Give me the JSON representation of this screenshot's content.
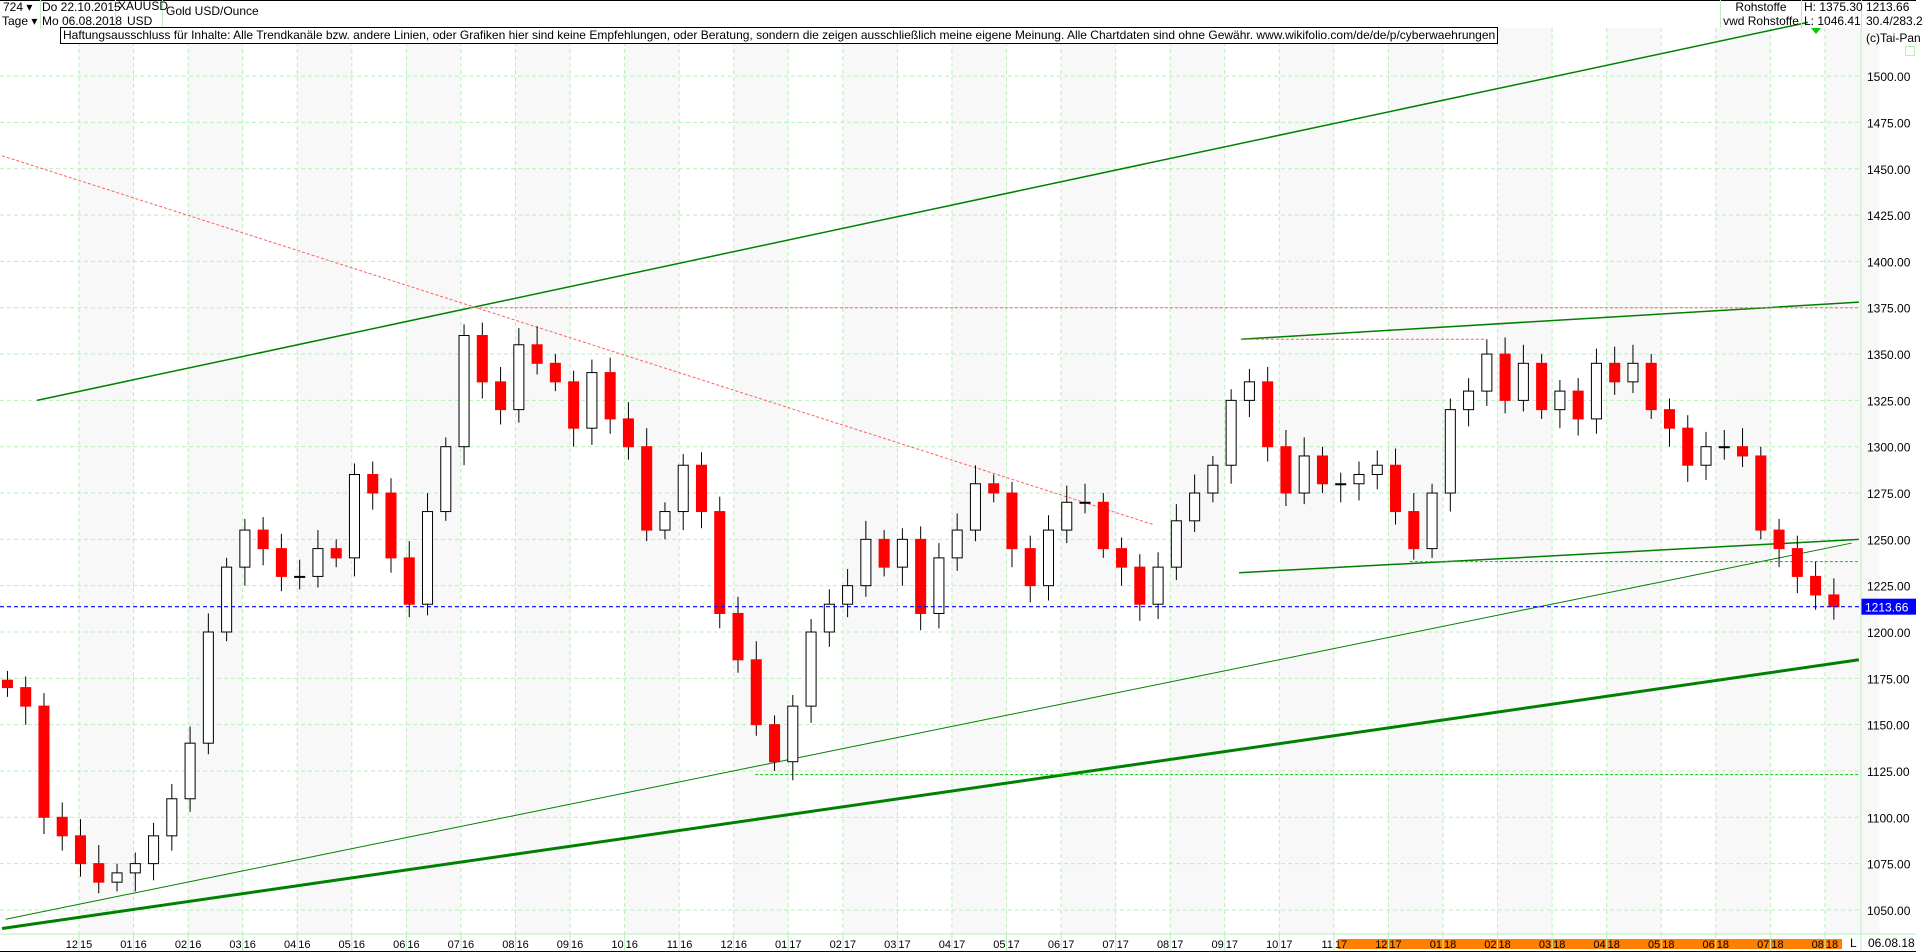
{
  "header": {
    "bars": "724 ▾",
    "interval": "Tage ▾",
    "from_date": "Do 22.10.2015",
    "to_date": "Mo 06.08.2018",
    "symbol": "XAUUSD",
    "currency": "USD",
    "name": "Gold USD/Ounce",
    "exchange": "Rohstoffe",
    "source": "vwd Rohstoffe",
    "high": "H: 1375.30",
    "low": "L: 1046.41",
    "last": "1213.66",
    "extra": "30.4/283.2",
    "copyright": "(c)Tai-Pan"
  },
  "disclaimer": "Haftungsausschluss für Inhalte: Alle Trendkanäle bzw. andere Linien, oder Grafiken hier sind keine Empfehlungen, oder Beratung, sondern die zeigen ausschließlich meine eigene Meinung. Alle Chartdaten sind ohne Gewähr.  www.wikifolio.com/de/de/p/cyberwaehrungen",
  "footer": {
    "mode": "L",
    "date": "06.08.18"
  },
  "colors": {
    "up": "#000000",
    "down": "#ff0000",
    "grid": "#b8f0b8",
    "trend": "#008000",
    "support": "#00cc00",
    "resistance": "#ff6060",
    "last_price": "#0000ff",
    "highlight": "#ff8000"
  },
  "chart_data": {
    "type": "candlestick",
    "title": "Gold USD/Ounce",
    "start_date": "2015-10-22",
    "end_date": "2018-08-06",
    "ylim": [
      1040,
      1530
    ],
    "grid": true,
    "y_ticks": [
      "1050.00",
      "1075.00",
      "1100.00",
      "1125.00",
      "1150.00",
      "1175.00",
      "1200.00",
      "1225.00",
      "1250.00",
      "1275.00",
      "1300.00",
      "1325.00",
      "1350.00",
      "1375.00",
      "1400.00",
      "1425.00",
      "1450.00",
      "1475.00",
      "1500.00"
    ],
    "x_ticks": [
      "12 15",
      "01 16",
      "02 16",
      "03 16",
      "04 16",
      "05 16",
      "06 16",
      "07 16",
      "08 16",
      "09 16",
      "10 16",
      "11 16",
      "12 16",
      "01 17",
      "02 17",
      "03 17",
      "04 17",
      "05 17",
      "06 17",
      "07 17",
      "08 17",
      "09 17",
      "10 17",
      "11 17",
      "12 17",
      "01 18",
      "02 18",
      "03 18",
      "04 18",
      "05 18",
      "06 18",
      "07 18",
      "08 18"
    ],
    "highlighted_from_tick": "11 17",
    "last_price": 1213.66,
    "closes": [
      1170,
      1160,
      1100,
      1090,
      1075,
      1065,
      1070,
      1075,
      1090,
      1110,
      1140,
      1200,
      1235,
      1255,
      1245,
      1230,
      1230,
      1245,
      1240,
      1285,
      1275,
      1240,
      1215,
      1265,
      1300,
      1360,
      1335,
      1320,
      1355,
      1345,
      1335,
      1310,
      1340,
      1315,
      1300,
      1255,
      1265,
      1290,
      1265,
      1210,
      1185,
      1150,
      1130,
      1160,
      1200,
      1215,
      1225,
      1250,
      1235,
      1250,
      1210,
      1240,
      1255,
      1280,
      1275,
      1245,
      1225,
      1255,
      1270,
      1270,
      1245,
      1235,
      1215,
      1235,
      1260,
      1275,
      1290,
      1325,
      1335,
      1300,
      1275,
      1295,
      1280,
      1280,
      1285,
      1290,
      1265,
      1245,
      1275,
      1320,
      1330,
      1350,
      1325,
      1345,
      1320,
      1330,
      1315,
      1345,
      1335,
      1345,
      1320,
      1310,
      1290,
      1300,
      1300,
      1295,
      1255,
      1245,
      1230,
      1220,
      1213.66
    ],
    "lines": [
      {
        "kind": "trend",
        "from": [
          "2015-11-08",
          1325
        ],
        "to": [
          "2018-07-22",
          1529
        ],
        "width": 1.5
      },
      {
        "kind": "trend",
        "from": [
          "2015-10-21",
          1045
        ],
        "to": [
          "2018-08-16",
          1248
        ],
        "width": 1
      },
      {
        "kind": "trend",
        "from": [
          "2015-10-19",
          1040
        ],
        "to": [
          "2018-08-20",
          1185
        ],
        "width": 3
      },
      {
        "kind": "trend",
        "from": [
          "2017-09-10",
          1358
        ],
        "to": [
          "2018-08-20",
          1378
        ],
        "width": 1.5
      },
      {
        "kind": "trend",
        "from": [
          "2017-09-09",
          1232
        ],
        "to": [
          "2018-08-20",
          1250
        ],
        "width": 1.5
      },
      {
        "kind": "resistance",
        "from": [
          "2015-10-19",
          1457
        ],
        "to": [
          "2017-07-22",
          1258
        ],
        "width": 1
      },
      {
        "kind": "resistance",
        "from": [
          "2016-07-06",
          1375
        ],
        "to": [
          "2018-08-20",
          1375
        ],
        "width": 1
      },
      {
        "kind": "resistance",
        "from": [
          "2017-09-10",
          1358
        ],
        "to": [
          "2018-01-25",
          1358
        ],
        "width": 1
      },
      {
        "kind": "support",
        "from": [
          "2016-12-13",
          1123
        ],
        "to": [
          "2018-08-20",
          1123
        ],
        "width": 1
      },
      {
        "kind": "support",
        "from": [
          "2017-12-13",
          1238
        ],
        "to": [
          "2018-08-20",
          1238
        ],
        "width": 1
      }
    ]
  }
}
